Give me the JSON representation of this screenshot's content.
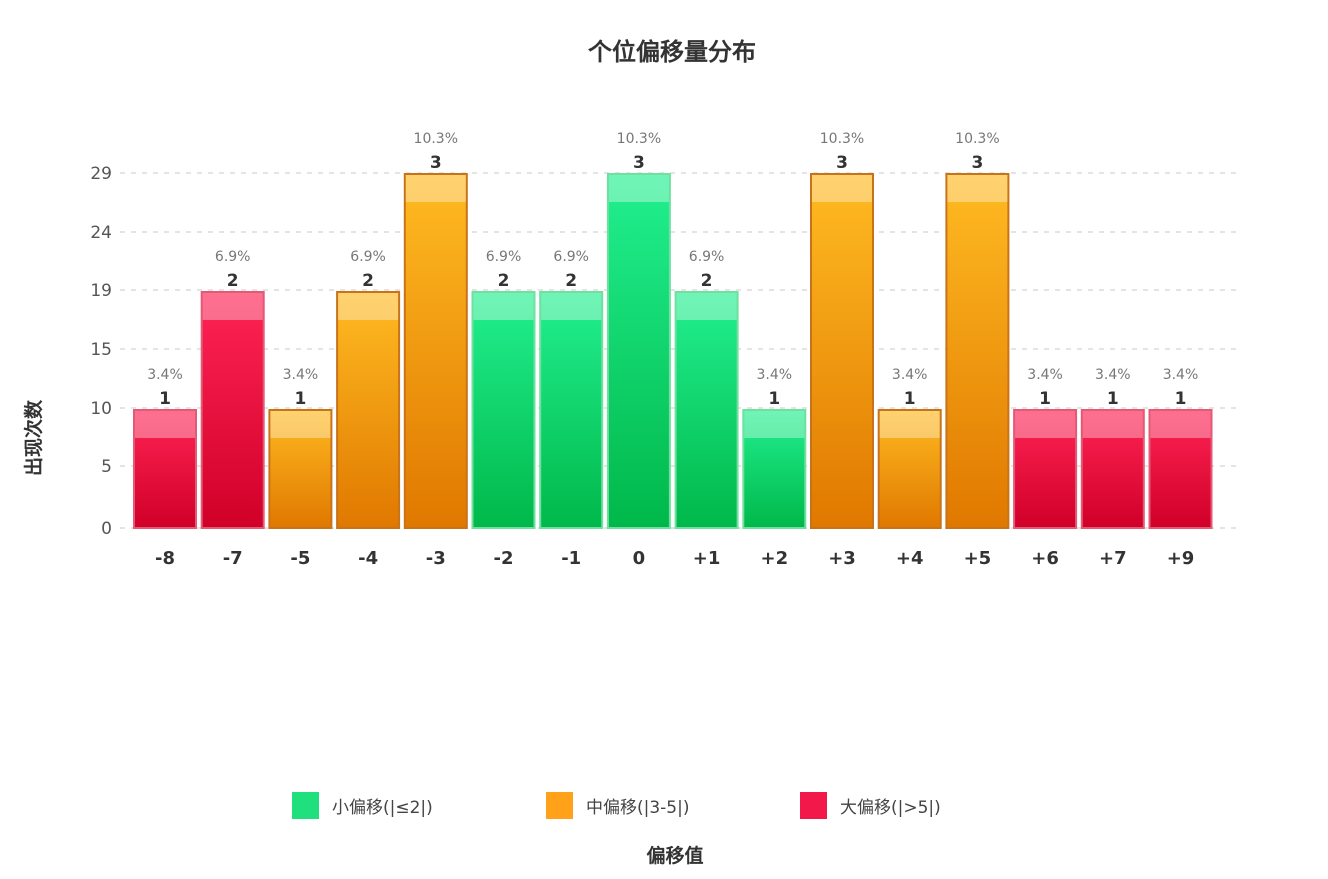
{
  "chart_data": {
    "type": "bar",
    "title": "个位偏移量分布",
    "xlabel": "偏移值",
    "ylabel": "出现次数",
    "y_ticks": [
      "0",
      "5",
      "10",
      "15",
      "19",
      "24",
      "29"
    ],
    "categories": [
      "-8",
      "-7",
      "-5",
      "-4",
      "-3",
      "-2",
      "-1",
      "0",
      "+1",
      "+2",
      "+3",
      "+4",
      "+5",
      "+6",
      "+7",
      "+9"
    ],
    "values": [
      1,
      2,
      1,
      2,
      3,
      2,
      2,
      3,
      2,
      1,
      3,
      1,
      3,
      1,
      1,
      1
    ],
    "percents": [
      "3.4%",
      "6.9%",
      "3.4%",
      "6.9%",
      "10.3%",
      "6.9%",
      "6.9%",
      "10.3%",
      "6.9%",
      "3.4%",
      "10.3%",
      "3.4%",
      "10.3%",
      "3.4%",
      "3.4%",
      "3.4%"
    ],
    "groups": [
      "large",
      "large",
      "medium",
      "medium",
      "medium",
      "small",
      "small",
      "small",
      "small",
      "small",
      "medium",
      "medium",
      "medium",
      "large",
      "large",
      "large"
    ],
    "legend": [
      {
        "key": "small",
        "label": "小偏移(|≤2|)",
        "color": "#1fe07c"
      },
      {
        "key": "medium",
        "label": "中偏移(|3-5|)",
        "color": "#ffa21a"
      },
      {
        "key": "large",
        "label": "大偏移(|>5|)",
        "color": "#f2184a"
      }
    ],
    "legend_position": "bottom",
    "grid": true
  }
}
